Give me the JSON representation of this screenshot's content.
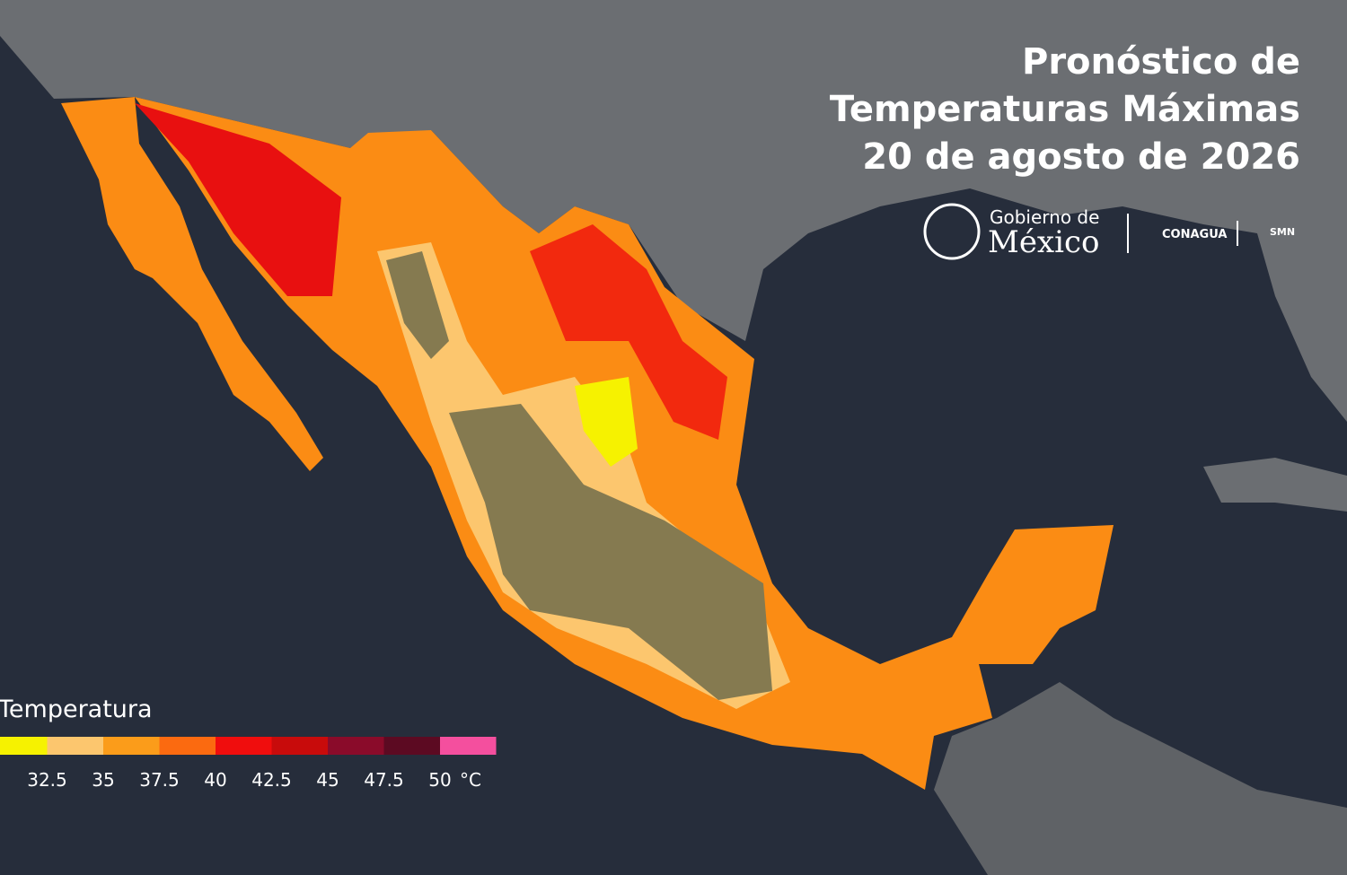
{
  "header": {
    "title": [
      "Pronóstico de",
      "Temperaturas Máximas",
      "20 de agosto de 2026"
    ]
  },
  "logos": {
    "gobierno": "Gobierno de",
    "mexico": "México",
    "conagua": "CONAGUA",
    "smn": "SMN"
  },
  "legend": {
    "title": "Temperatura",
    "colors": [
      "#f6f200",
      "#fcc66e",
      "#fb9c1a",
      "#fb6a10",
      "#f00d0d",
      "#c80b0b",
      "#8a0b2a",
      "#5c0a22",
      "#f44f9e"
    ],
    "labels": [
      "32.5",
      "35",
      "37.5",
      "40",
      "42.5",
      "45",
      "47.5",
      "50"
    ],
    "unit": "°C"
  }
}
